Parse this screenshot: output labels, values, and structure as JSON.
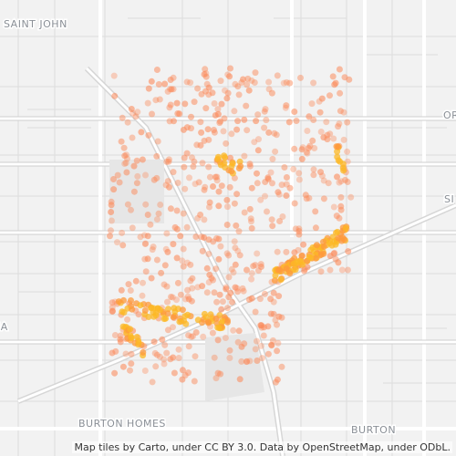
{
  "map": {
    "labels": [
      "SAINT JOHN",
      "OR",
      "SI",
      "HA",
      "BURTON HOMES",
      "BURTON"
    ],
    "attribution": "Map tiles by Carto, under CC BY 3.0. Data by OpenStreetMap, under ODbL."
  }
}
